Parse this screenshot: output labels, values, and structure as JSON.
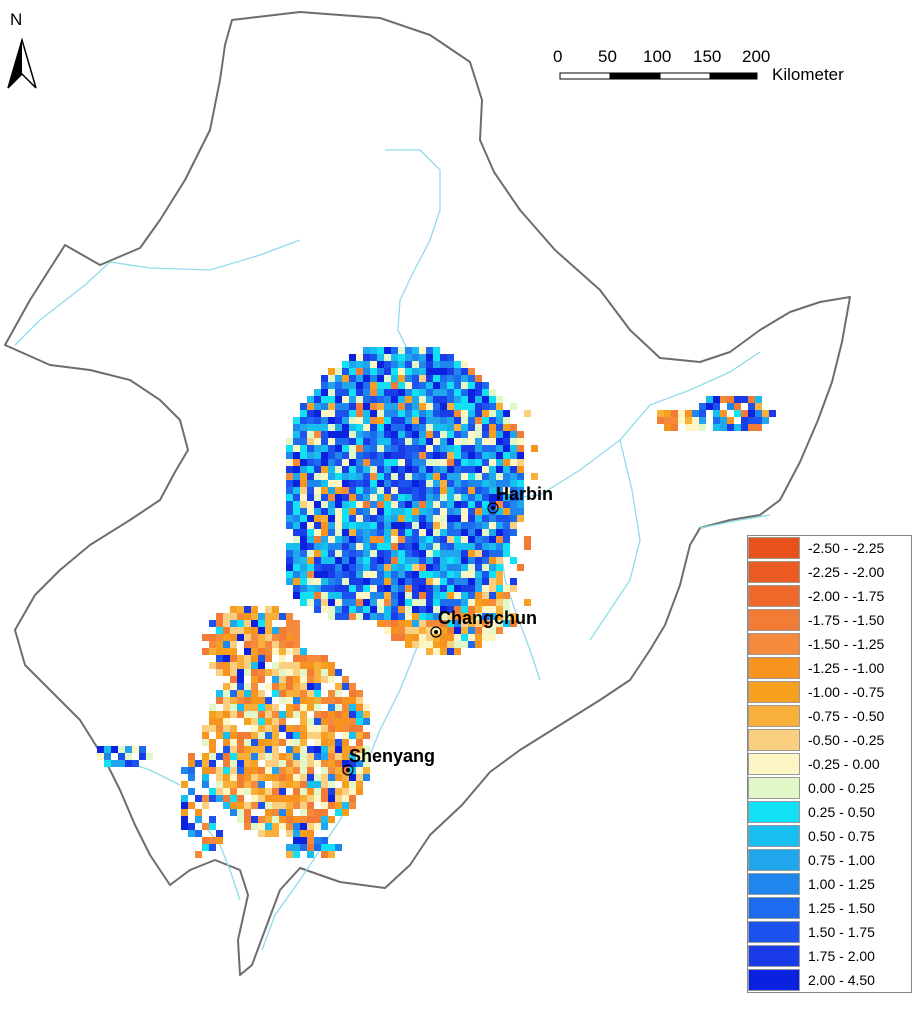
{
  "north_arrow": {
    "label": "N"
  },
  "scale_bar": {
    "ticks": [
      "0",
      "50",
      "100",
      "150",
      "200"
    ],
    "unit": "Kilometer"
  },
  "cities": [
    {
      "name": "Harbin"
    },
    {
      "name": "Changchun"
    },
    {
      "name": "Shenyang"
    }
  ],
  "legend": {
    "items": [
      {
        "label": "-2.50 - -2.25",
        "color": "#e8501c"
      },
      {
        "label": "-2.25 - -2.00",
        "color": "#ec5a24"
      },
      {
        "label": "-2.00 - -1.75",
        "color": "#ef6a2a"
      },
      {
        "label": "-1.75 - -1.50",
        "color": "#f27b35"
      },
      {
        "label": "-1.50 - -1.25",
        "color": "#f58a3a"
      },
      {
        "label": "-1.25 - -1.00",
        "color": "#f7941f"
      },
      {
        "label": "-1.00 - -0.75",
        "color": "#f7a020"
      },
      {
        "label": "-0.75 - -0.50",
        "color": "#f9b03a"
      },
      {
        "label": "-0.50 - -0.25",
        "color": "#fbcf80"
      },
      {
        "label": "-0.25 - 0.00",
        "color": "#fdf5c4"
      },
      {
        "label": "0.00 - 0.25",
        "color": "#e2f7c8"
      },
      {
        "label": "0.25 - 0.50",
        "color": "#12e0f4"
      },
      {
        "label": "0.50 - 0.75",
        "color": "#16bff0"
      },
      {
        "label": "0.75 - 1.00",
        "color": "#20a6ec"
      },
      {
        "label": "1.00 - 1.25",
        "color": "#1f86ee"
      },
      {
        "label": "1.25 - 1.50",
        "color": "#1d6cf0"
      },
      {
        "label": "1.50 - 1.75",
        "color": "#1c52ee"
      },
      {
        "label": "1.75 - 2.00",
        "color": "#1a3be8"
      },
      {
        "label": "2.00 - 4.50",
        "color": "#0a22e0"
      }
    ]
  },
  "colors": {
    "boundary": "#6d6d6d",
    "river": "#8fdcea",
    "scale_dark": "#000000",
    "scale_light": "#ffffff"
  }
}
